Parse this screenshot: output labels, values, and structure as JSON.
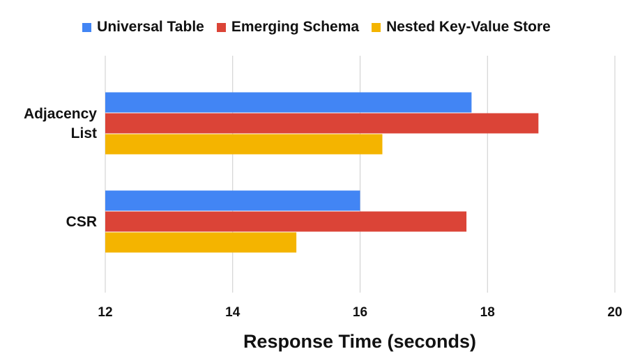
{
  "chart_data": {
    "type": "bar",
    "orientation": "horizontal",
    "categories": [
      "Adjacency List",
      "CSR"
    ],
    "category_lines": [
      [
        "Adjacency",
        "List"
      ],
      [
        "CSR"
      ]
    ],
    "series": [
      {
        "name": "Universal Table",
        "color": "#4285f4",
        "values": [
          17.75,
          16.0
        ]
      },
      {
        "name": "Emerging Schema",
        "color": "#db4437",
        "values": [
          18.8,
          17.67
        ]
      },
      {
        "name": "Nested Key-Value Store",
        "color": "#f4b400",
        "values": [
          16.35,
          15.0
        ]
      }
    ],
    "xlabel": "Response Time (seconds)",
    "ylabel": "",
    "xlim": [
      12,
      20
    ],
    "xticks": [
      "12",
      "14",
      "16",
      "18",
      "20"
    ],
    "grid": true,
    "legend_position": "top"
  }
}
